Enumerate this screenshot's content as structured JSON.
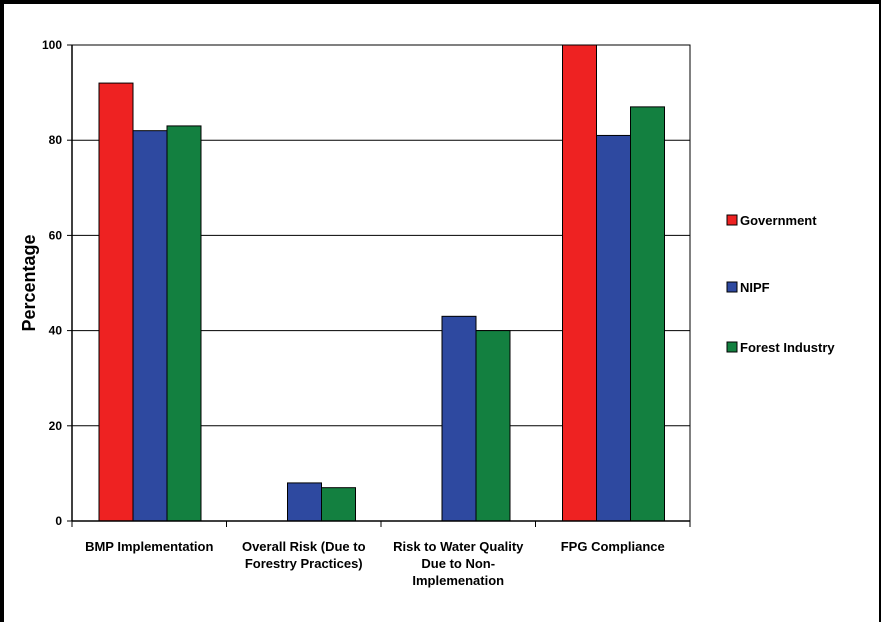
{
  "chart_data": {
    "type": "bar",
    "title": "",
    "xlabel": "",
    "ylabel": "Percentage",
    "ylim": [
      0,
      100
    ],
    "yticks": [
      0,
      20,
      40,
      60,
      80,
      100
    ],
    "grid": true,
    "legend_position": "right",
    "categories": [
      [
        "BMP Implementation"
      ],
      [
        "Overall Risk (Due to",
        "Forestry Practices)"
      ],
      [
        "Risk to Water Quality",
        "Due to Non-",
        "Implemenation"
      ],
      [
        "FPG Compliance"
      ]
    ],
    "series": [
      {
        "name": "Government",
        "color": "#ee2222",
        "values": [
          92,
          0,
          0,
          100
        ]
      },
      {
        "name": "NIPF",
        "color": "#2e49a0",
        "values": [
          82,
          8,
          43,
          81
        ]
      },
      {
        "name": "Forest Industry",
        "color": "#138040",
        "values": [
          83,
          7,
          40,
          87
        ]
      }
    ]
  }
}
